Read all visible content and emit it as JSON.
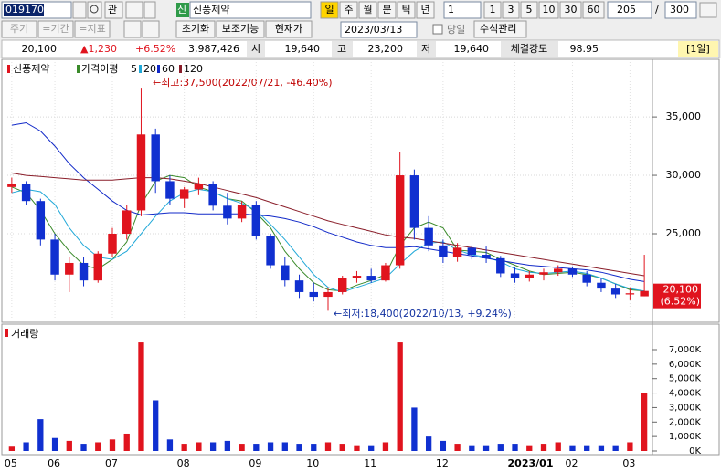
{
  "toolbar": {
    "code": "019170",
    "tag": "관",
    "stock_tag": "신",
    "stock_name": "신풍제약",
    "periods": [
      "일",
      "주",
      "월",
      "분",
      "틱",
      "년"
    ],
    "interval": "1",
    "minutes": [
      "1",
      "3",
      "5",
      "10",
      "30",
      "60"
    ],
    "count": "205",
    "separator": "/",
    "total": "300"
  },
  "toolbar2": {
    "items": [
      "주기",
      "=기간",
      "=지표"
    ],
    "buttons": [
      "초기화",
      "보조기능",
      "현재가"
    ],
    "date": "2023/03/13",
    "today": "당일",
    "formula": "수식관리"
  },
  "quote": {
    "price": "20,100",
    "change": "▲1,230",
    "rate": "+6.52%",
    "volume": "3,987,426",
    "open_label": "시",
    "open": "19,640",
    "high_label": "고",
    "high": "23,200",
    "low_label": "저",
    "low": "19,640",
    "strength_label": "체결강도",
    "strength": "98.95",
    "period": "[1일]"
  },
  "chart_data": {
    "type": "candlestick",
    "title": "신풍제약",
    "indicator": "가격이평",
    "categories": [
      "05",
      null,
      null,
      "06",
      null,
      null,
      null,
      "07",
      null,
      null,
      null,
      null,
      "08",
      null,
      null,
      null,
      null,
      "09",
      null,
      null,
      null,
      "10",
      null,
      null,
      null,
      "11",
      null,
      null,
      null,
      null,
      "12",
      null,
      null,
      null,
      null,
      "2023/01",
      null,
      null,
      null,
      "02",
      null,
      null,
      null,
      "03",
      null
    ],
    "open": [
      29000,
      29300,
      27800,
      24500,
      21500,
      22500,
      21000,
      23300,
      25000,
      27000,
      33500,
      29500,
      28000,
      28800,
      29300,
      27400,
      26300,
      27500,
      24800,
      22300,
      21000,
      20000,
      19600,
      20000,
      21200,
      21400,
      21000,
      22300,
      30000,
      25500,
      24000,
      23000,
      23800,
      23200,
      22900,
      21600,
      21200,
      21500,
      21700,
      22000,
      21500,
      20800,
      20300,
      19800,
      19640
    ],
    "high": [
      29800,
      29500,
      28000,
      25000,
      23000,
      23000,
      23500,
      25500,
      27500,
      37500,
      34000,
      30000,
      29000,
      29800,
      29500,
      28500,
      27800,
      27800,
      25000,
      23000,
      21500,
      20800,
      20400,
      21400,
      21800,
      22000,
      22500,
      32000,
      30500,
      26500,
      24500,
      24200,
      24000,
      23900,
      23100,
      22100,
      21800,
      22000,
      22300,
      22200,
      21800,
      21200,
      20700,
      20400,
      23200
    ],
    "low": [
      28500,
      27500,
      24000,
      21000,
      20000,
      20500,
      20800,
      23000,
      24500,
      26500,
      28500,
      27500,
      27200,
      28300,
      27000,
      25800,
      26000,
      24500,
      22000,
      20500,
      19500,
      19200,
      18400,
      19800,
      20800,
      20800,
      20900,
      22000,
      24500,
      23500,
      22500,
      22600,
      22800,
      22500,
      21300,
      20800,
      20900,
      21000,
      21400,
      21300,
      20500,
      20000,
      19500,
      19300,
      19640
    ],
    "close": [
      29300,
      27800,
      24500,
      21500,
      22500,
      21000,
      23300,
      25000,
      27000,
      33500,
      29500,
      28000,
      28800,
      29300,
      27400,
      26300,
      27500,
      24800,
      22300,
      21000,
      20000,
      19600,
      20000,
      21200,
      21400,
      21000,
      22300,
      30000,
      25500,
      24000,
      23000,
      23800,
      23200,
      22900,
      21600,
      21200,
      21500,
      21700,
      22000,
      21500,
      20800,
      20300,
      19800,
      19900,
      20100
    ],
    "up_color": "#e0141e",
    "down_color": "#1030d0",
    "series": [
      {
        "name": "5",
        "color": "#3a8a2a",
        "values": [
          29000,
          28500,
          27000,
          25000,
          23500,
          22300,
          22000,
          22800,
          24300,
          27500,
          29500,
          30000,
          29800,
          29000,
          28600,
          28000,
          27800,
          26800,
          25500,
          23500,
          22000,
          20800,
          20200,
          20100,
          20600,
          21000,
          21500,
          24000,
          25500,
          26000,
          25500,
          23600,
          23500,
          23400,
          22800,
          22300,
          21800,
          21500,
          21600,
          21700,
          21500,
          21200,
          20700,
          20200,
          20100
        ]
      },
      {
        "name": "20",
        "color": "#20a8d8",
        "values": [
          28500,
          28800,
          28600,
          27500,
          25500,
          24000,
          23000,
          22800,
          23500,
          25000,
          26500,
          27800,
          28500,
          28800,
          28600,
          28000,
          27600,
          27000,
          25800,
          24500,
          23000,
          21500,
          20400,
          20000,
          20400,
          20800,
          21200,
          22400,
          23500,
          24200,
          24300,
          23600,
          23200,
          23000,
          22600,
          22000,
          21700,
          21600,
          21700,
          21800,
          21600,
          21200,
          20700,
          20300,
          20100
        ]
      },
      {
        "name": "60",
        "color": "#1028c8",
        "values": [
          34300,
          34500,
          33800,
          32500,
          31000,
          29800,
          28800,
          27800,
          27000,
          26600,
          26700,
          26800,
          26800,
          26700,
          26700,
          26700,
          26700,
          26600,
          26500,
          26300,
          26000,
          25600,
          25100,
          24700,
          24300,
          24000,
          23800,
          23800,
          23900,
          23700,
          23500,
          23300,
          23100,
          22900,
          22700,
          22500,
          22300,
          22200,
          22100,
          22000,
          21900,
          21700,
          21400,
          21100,
          20900
        ]
      },
      {
        "name": "120",
        "color": "#8a1e2a",
        "values": [
          30200,
          30000,
          29900,
          29800,
          29700,
          29600,
          29600,
          29600,
          29700,
          29800,
          29800,
          29700,
          29500,
          29300,
          29000,
          28700,
          28400,
          28100,
          27700,
          27300,
          26900,
          26500,
          26100,
          25800,
          25500,
          25200,
          24900,
          24700,
          24600,
          24400,
          24200,
          24000,
          23800,
          23600,
          23400,
          23200,
          23000,
          22800,
          22600,
          22400,
          22200,
          22000,
          21800,
          21600,
          21400
        ]
      }
    ],
    "ylim": [
      17650,
      39700
    ],
    "yticks": [
      {
        "value": 25000,
        "label": "25,000"
      },
      {
        "value": 30000,
        "label": "30,000"
      },
      {
        "value": 35000,
        "label": "35,000"
      }
    ],
    "annotations": [
      "←최고:37,500(2022/07/21, -46.40%)",
      "←최저:18,400(2022/10/13, +9.24%)"
    ],
    "last_label": {
      "value": 20100,
      "label": "20,100",
      "change": "(6.52%)"
    },
    "volume": {
      "title": "거래량",
      "values": [
        300000,
        600000,
        2200000,
        900000,
        700000,
        500000,
        600000,
        800000,
        1200000,
        7500000,
        3500000,
        800000,
        500000,
        600000,
        600000,
        700000,
        500000,
        500000,
        600000,
        600000,
        500000,
        500000,
        600000,
        500000,
        400000,
        400000,
        600000,
        7500000,
        3000000,
        1000000,
        700000,
        500000,
        400000,
        400000,
        500000,
        500000,
        400000,
        500000,
        600000,
        400000,
        400000,
        400000,
        400000,
        600000,
        3987426
      ],
      "ylim": [
        0,
        8450000
      ],
      "yticks": [
        {
          "value": 0,
          "label": "0K"
        },
        {
          "value": 1000000,
          "label": "1,000K"
        },
        {
          "value": 2000000,
          "label": "2,000K"
        },
        {
          "value": 3000000,
          "label": "3,000K"
        },
        {
          "value": 4000000,
          "label": "4,000K"
        },
        {
          "value": 5000000,
          "label": "5,000K"
        },
        {
          "value": 6000000,
          "label": "6,000K"
        },
        {
          "value": 7000000,
          "label": "7,000K"
        }
      ]
    }
  }
}
